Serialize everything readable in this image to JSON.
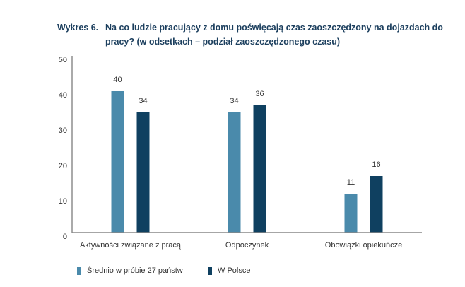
{
  "title": {
    "number": "Wykres 6.",
    "text": "Na co ludzie pracujący z domu poświęcają czas zaoszczędzony na dojazdach do pracy? (w odsetkach – podział zaoszczędzonego czasu)"
  },
  "colors": {
    "series1": "#4a8aab",
    "series2": "#0f4060",
    "title": "#1c3f5e"
  },
  "chart_data": {
    "type": "bar",
    "title": "Na co ludzie pracujący z domu poświęcają czas zaoszczędzony na dojazdach do pracy? (w odsetkach – podział zaoszczędzonego czasu)",
    "categories": [
      "Aktywności związane z pracą",
      "Odpoczynek",
      "Obowiązki opiekuńcze"
    ],
    "series": [
      {
        "name": "Średnio w próbie 27 państw",
        "values": [
          40,
          34,
          11
        ],
        "labels": [
          "40",
          "34",
          "11"
        ]
      },
      {
        "name": "W Polsce",
        "values": [
          34,
          36,
          16
        ],
        "labels": [
          "34",
          "36",
          "16"
        ]
      }
    ],
    "xlabel": "",
    "ylabel": "",
    "ylim": [
      0,
      50
    ],
    "yticks": [
      "0",
      "10",
      "20",
      "30",
      "40",
      "50"
    ],
    "grid": false,
    "legend_position": "bottom-left"
  }
}
